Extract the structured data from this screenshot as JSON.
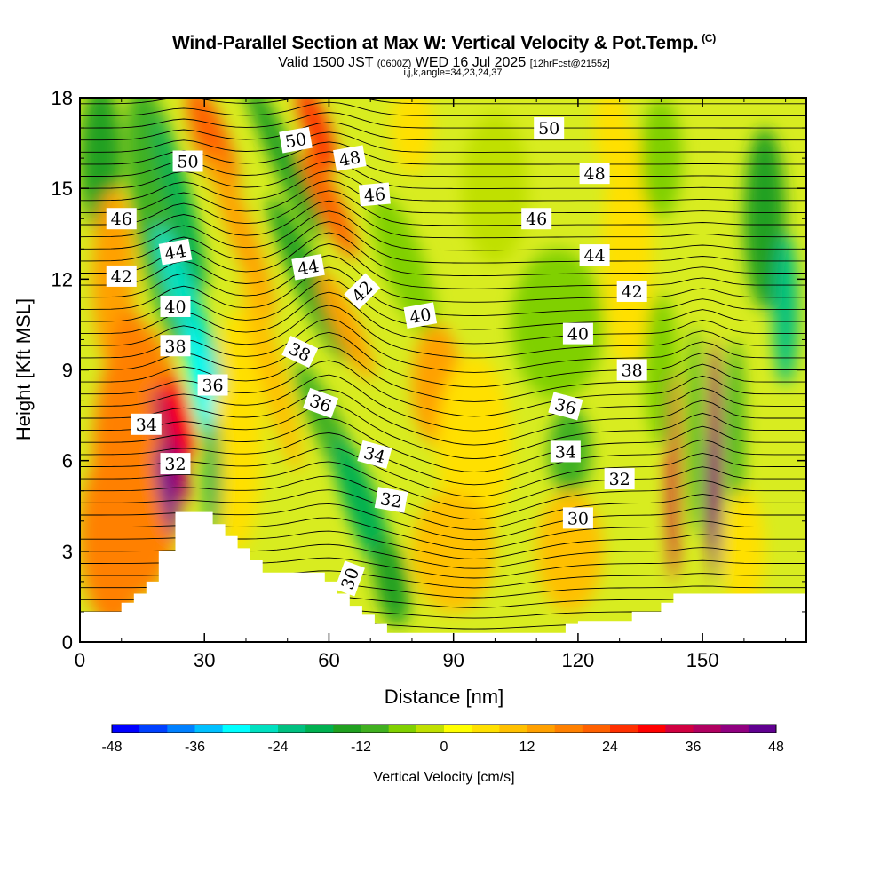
{
  "title": {
    "main": "Wind-Parallel Section at Max W: Vertical Velocity & Pot.Temp.",
    "copyright": "(C)",
    "valid_prefix": "Valid 1500 JST",
    "valid_utc": "(0600Z)",
    "valid_date": "WED 16 Jul 2025",
    "forecast": "[12hrFcst@2155z]",
    "indices": "i,j,k,angle=34,23,24,37"
  },
  "chart_data": {
    "type": "heatmap",
    "xlabel": "Distance [nm]",
    "ylabel": "Height [Kft MSL]",
    "xlim": [
      0,
      175
    ],
    "ylim": [
      0,
      18
    ],
    "x_ticks": [
      "0",
      "30",
      "60",
      "90",
      "120",
      "150"
    ],
    "y_ticks": [
      "0",
      "3",
      "6",
      "9",
      "12",
      "15",
      "18"
    ],
    "colorbar": {
      "label": "Vertical Velocity [cm/s]",
      "ticks": [
        "-48",
        "-36",
        "-24",
        "-12",
        "0",
        "12",
        "24",
        "36",
        "48"
      ],
      "range": [
        -48,
        48
      ],
      "colors": [
        "#0000ff",
        "#0040ff",
        "#0080ff",
        "#00c0ff",
        "#00ffff",
        "#00e0c0",
        "#00c080",
        "#00b050",
        "#20a020",
        "#40b020",
        "#80d000",
        "#c0e000",
        "#ffff00",
        "#ffe000",
        "#ffc000",
        "#ffa000",
        "#ff8000",
        "#ff6000",
        "#ff3000",
        "#ff0000",
        "#d00040",
        "#b00060",
        "#900080",
        "#600090"
      ]
    },
    "theta_contour_labels": [
      {
        "text": "50",
        "x": 26,
        "y": 15.9,
        "angle": 0
      },
      {
        "text": "50",
        "x": 52,
        "y": 16.6,
        "angle": -10
      },
      {
        "text": "48",
        "x": 65,
        "y": 16.0,
        "angle": -10
      },
      {
        "text": "46",
        "x": 71,
        "y": 14.8,
        "angle": -5
      },
      {
        "text": "50",
        "x": 113,
        "y": 17.0,
        "angle": 0
      },
      {
        "text": "48",
        "x": 124,
        "y": 15.5,
        "angle": 0
      },
      {
        "text": "46",
        "x": 110,
        "y": 14.0,
        "angle": 0
      },
      {
        "text": "44",
        "x": 124,
        "y": 12.8,
        "angle": 0
      },
      {
        "text": "46",
        "x": 10,
        "y": 14.0,
        "angle": 0
      },
      {
        "text": "44",
        "x": 23,
        "y": 12.9,
        "angle": -10
      },
      {
        "text": "42",
        "x": 10,
        "y": 12.1,
        "angle": 0
      },
      {
        "text": "44",
        "x": 55,
        "y": 12.4,
        "angle": -10
      },
      {
        "text": "42",
        "x": 68,
        "y": 11.6,
        "angle": -45
      },
      {
        "text": "40",
        "x": 82,
        "y": 10.8,
        "angle": -10
      },
      {
        "text": "42",
        "x": 133,
        "y": 11.6,
        "angle": 0
      },
      {
        "text": "40",
        "x": 23,
        "y": 11.1,
        "angle": 0
      },
      {
        "text": "40",
        "x": 120,
        "y": 10.2,
        "angle": 0
      },
      {
        "text": "38",
        "x": 23,
        "y": 9.8,
        "angle": 0
      },
      {
        "text": "38",
        "x": 53,
        "y": 9.6,
        "angle": 25
      },
      {
        "text": "38",
        "x": 133,
        "y": 9.0,
        "angle": 0
      },
      {
        "text": "36",
        "x": 32,
        "y": 8.5,
        "angle": 0
      },
      {
        "text": "36",
        "x": 58,
        "y": 7.9,
        "angle": 20
      },
      {
        "text": "36",
        "x": 117,
        "y": 7.8,
        "angle": 15
      },
      {
        "text": "34",
        "x": 16,
        "y": 7.2,
        "angle": 0
      },
      {
        "text": "34",
        "x": 71,
        "y": 6.2,
        "angle": 15
      },
      {
        "text": "34",
        "x": 117,
        "y": 6.3,
        "angle": 0
      },
      {
        "text": "32",
        "x": 23,
        "y": 5.9,
        "angle": 0
      },
      {
        "text": "32",
        "x": 75,
        "y": 4.7,
        "angle": 10
      },
      {
        "text": "32",
        "x": 130,
        "y": 5.4,
        "angle": 0
      },
      {
        "text": "30",
        "x": 120,
        "y": 4.1,
        "angle": 0
      },
      {
        "text": "30",
        "x": 65,
        "y": 2.1,
        "angle": -70
      }
    ]
  }
}
